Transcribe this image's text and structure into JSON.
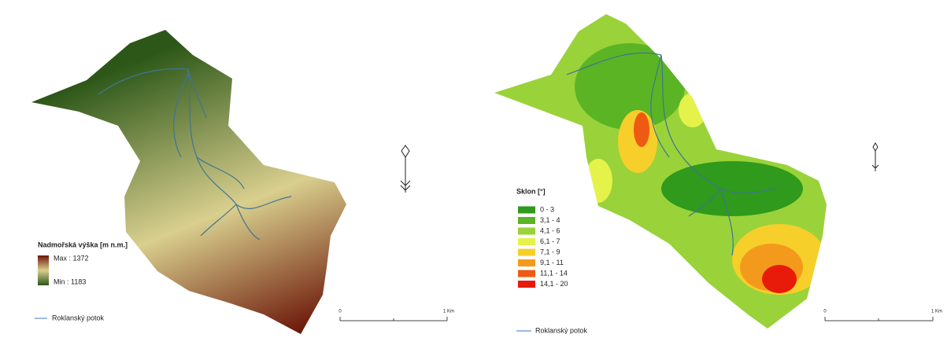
{
  "panels": [
    {
      "legend": {
        "title": "Nadmořská výška [m n.m.]",
        "max_label": "Max : 1372",
        "min_label": "Min : 1183",
        "gradient": [
          "#6b1608",
          "#d9cf8e",
          "#2c5718"
        ]
      },
      "stream_legend": "Roklanský potok",
      "scale": {
        "start": "0",
        "end": "1 Km"
      }
    },
    {
      "legend": {
        "title": "Sklon [°]",
        "classes": [
          {
            "label": "0 - 3",
            "color": "#2f9a1c"
          },
          {
            "label": "3,1 - 4",
            "color": "#5bb424"
          },
          {
            "label": "4,1 - 6",
            "color": "#9ad23a"
          },
          {
            "label": "6,1 - 7",
            "color": "#e4f24a"
          },
          {
            "label": "7,1 - 9",
            "color": "#f6cf2a"
          },
          {
            "label": "9,1 - 11",
            "color": "#f39a1c"
          },
          {
            "label": "11,1 - 14",
            "color": "#ef5a12"
          },
          {
            "label": "14,1 - 20",
            "color": "#e81a0a"
          }
        ]
      },
      "stream_legend": "Roklanský potok",
      "scale": {
        "start": "0",
        "end": "1 Km"
      }
    }
  ]
}
